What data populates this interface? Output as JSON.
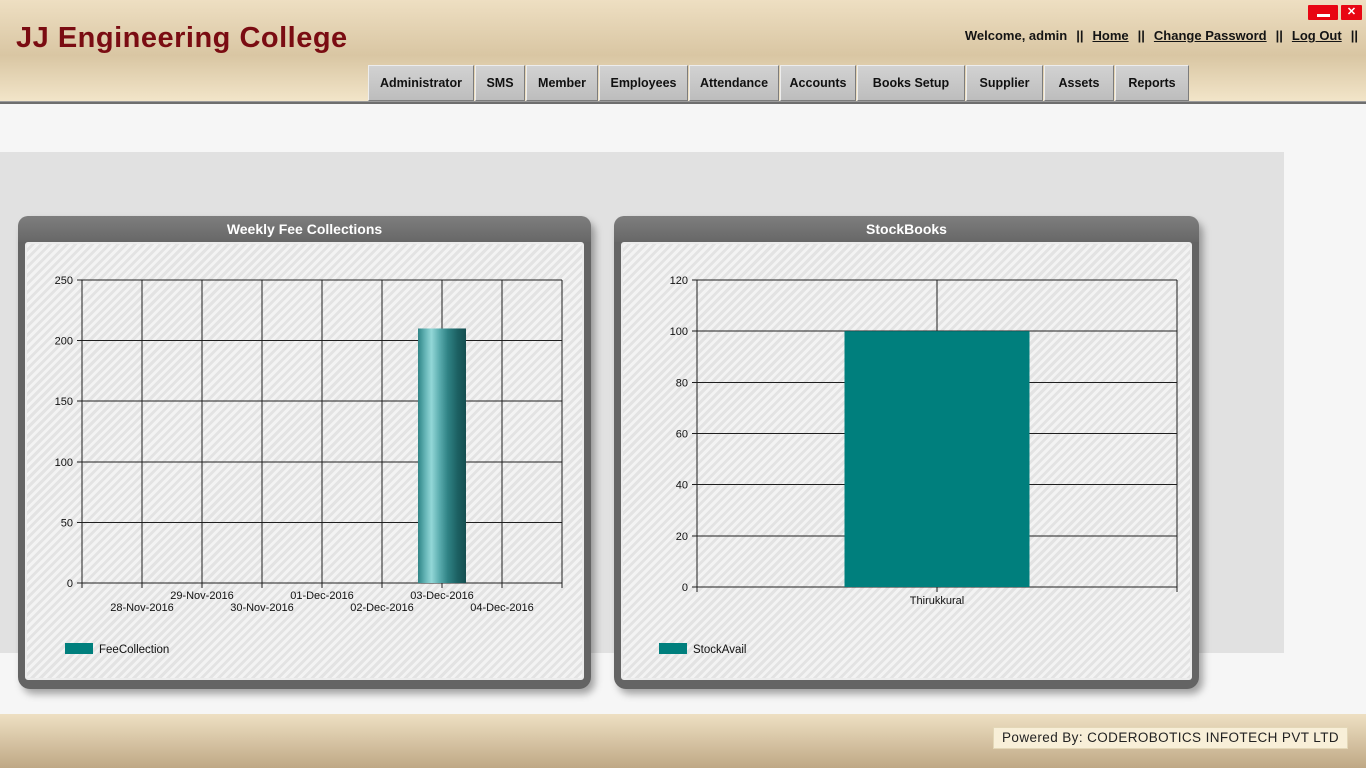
{
  "header": {
    "app_title": "JJ Engineering College",
    "welcome_text": "Welcome, admin",
    "separator": "||",
    "links": [
      "Home",
      "Change Password",
      "Log Out"
    ]
  },
  "window_controls": {
    "minimize": "minimize",
    "close": "X"
  },
  "menu": {
    "items": [
      "Administrator",
      "SMS",
      "Member",
      "Employees",
      "Attendance",
      "Accounts",
      "Books Setup",
      "Supplier",
      "Assets",
      "Reports"
    ]
  },
  "footer": {
    "powered_by": "Powered By: CODEROBOTICS INFOTECH PVT LTD"
  },
  "colors": {
    "bar_teal": "#007f7d",
    "bar_cylinder_light": "#93d7d7",
    "bar_cylinder_dark": "#154e50",
    "grid": "#1f1f1f",
    "accent_red": "#e80613",
    "title_maroon": "#7a0c12"
  },
  "chart_data": [
    {
      "type": "bar",
      "title": "Weekly Fee Collections",
      "categories": [
        "28-Nov-2016",
        "29-Nov-2016",
        "30-Nov-2016",
        "01-Dec-2016",
        "02-Dec-2016",
        "03-Dec-2016",
        "04-Dec-2016"
      ],
      "series": [
        {
          "name": "FeeCollection",
          "values": [
            0,
            0,
            0,
            0,
            0,
            210,
            0
          ]
        }
      ],
      "ylim": [
        0,
        250
      ],
      "ytick": 50,
      "grid": "full",
      "legend": "FeeCollection",
      "legend_position": "bottom-left",
      "bar_style": "cylinder",
      "staggered_x_labels": true
    },
    {
      "type": "bar",
      "title": "StockBooks",
      "categories": [
        "Thirukkural"
      ],
      "series": [
        {
          "name": "StockAvail",
          "values": [
            100
          ]
        }
      ],
      "ylim": [
        0,
        120
      ],
      "ytick": 20,
      "grid": "horizontal-center",
      "legend": "StockAvail",
      "legend_position": "bottom-left",
      "bar_style": "flat",
      "staggered_x_labels": false
    }
  ]
}
